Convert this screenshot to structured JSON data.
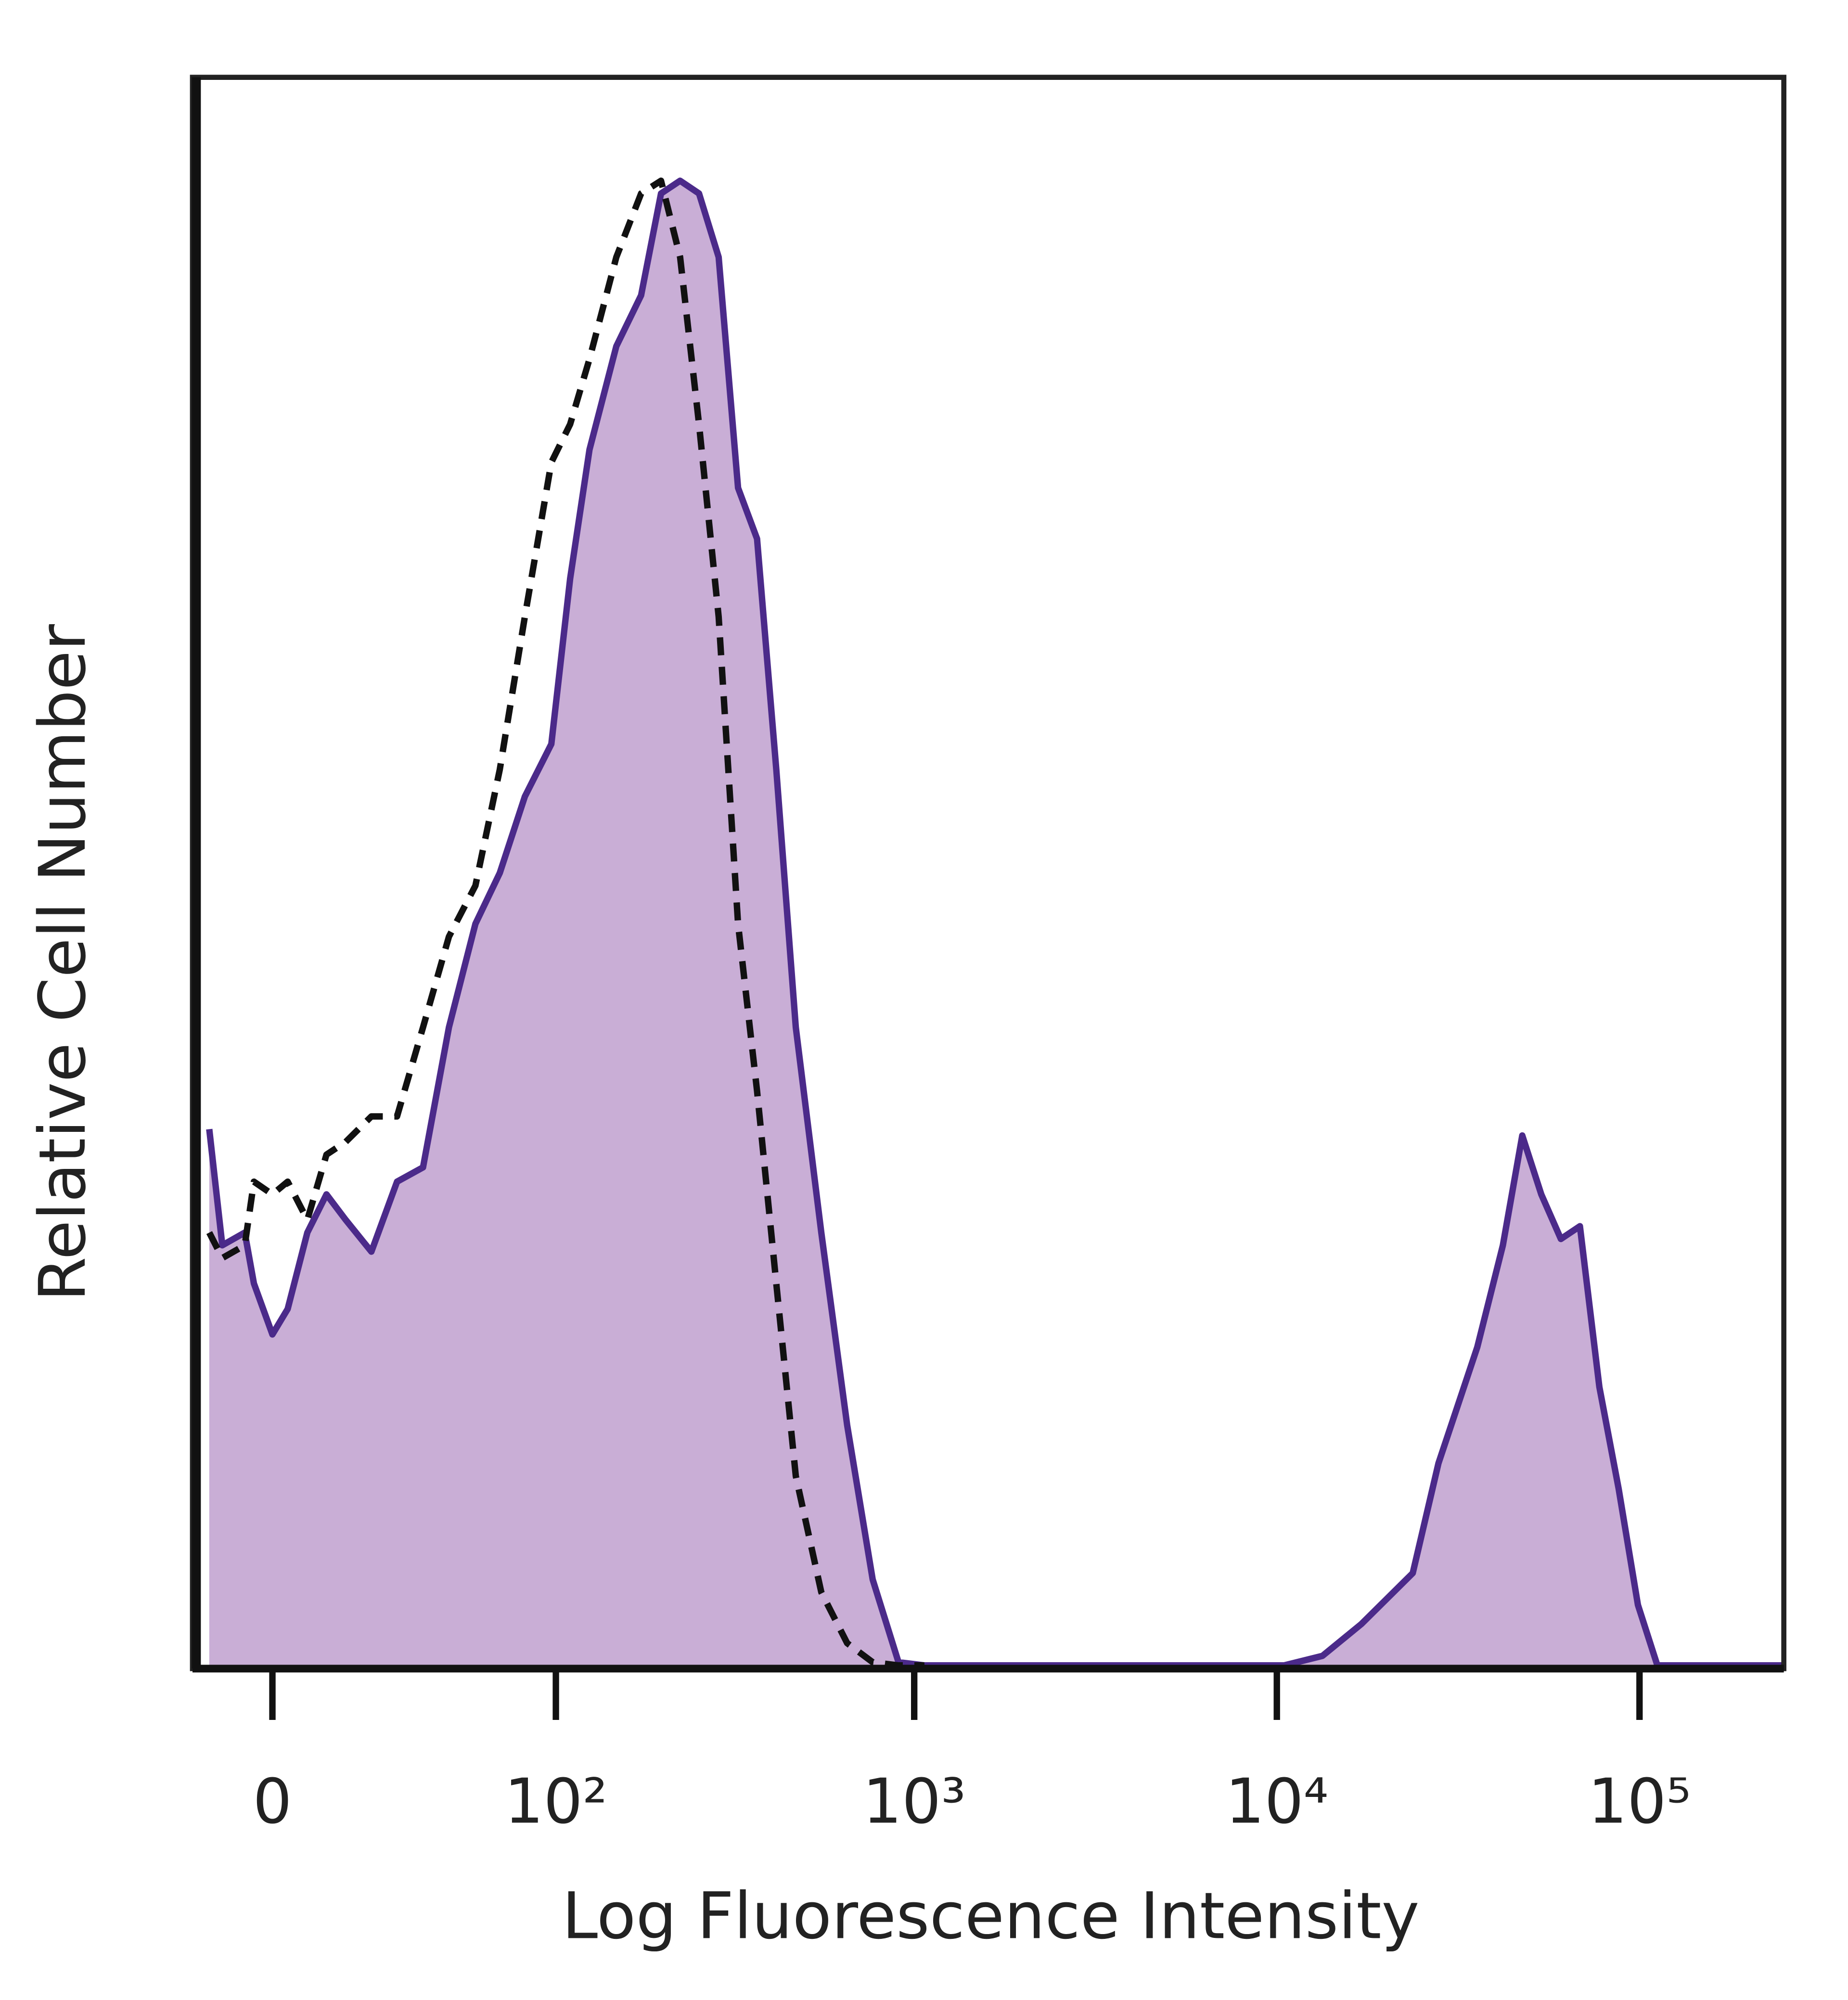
{
  "chart_data": {
    "type": "histogram-overlay",
    "x_label": "Log Fluorescence Intensity",
    "y_label": "Relative Cell Number",
    "xscale": "asinh",
    "xlim": [
      -18,
      250000
    ],
    "ylim": [
      0,
      100
    ],
    "xticks": [
      0,
      {
        "value": 100,
        "label": "10²"
      },
      {
        "value": 1000,
        "label": "10³"
      },
      {
        "value": 10000,
        "label": "10⁴"
      },
      {
        "value": 100000,
        "label": "10⁵"
      }
    ],
    "x": [
      -14,
      -11,
      -6,
      -4,
      0,
      3.3,
      7.6,
      11.9,
      16.4,
      22.8,
      29.8,
      37.7,
      46.6,
      57,
      68,
      81,
      97,
      110,
      125,
      149,
      175,
      199,
      225,
      254,
      288,
      326,
      368,
      416,
      471,
      554,
      653,
      768,
      905,
      1067,
      10470,
      13360,
      17100,
      23700,
      27900,
      35700,
      42000,
      47500,
      53600,
      60700,
      68500,
      77500,
      87600,
      99000,
      112000,
      250000
    ],
    "series": [
      {
        "color": "#4b2a8a",
        "fill": "#c9aed6",
        "dashed": false,
        "values": [
          33.9,
          26.6,
          27.4,
          24.2,
          21.0,
          22.6,
          27.4,
          29.8,
          28.2,
          26.2,
          30.6,
          31.5,
          40.3,
          46.8,
          50.0,
          54.8,
          58.1,
          68.5,
          76.6,
          83.1,
          86.3,
          92.7,
          93.5,
          92.7,
          88.7,
          74.2,
          71.0,
          56.5,
          40.3,
          27.4,
          15.3,
          5.6,
          0.4,
          0.2,
          0.2,
          0.8,
          2.8,
          6.0,
          12.9,
          20.2,
          26.6,
          33.5,
          29.8,
          27.0,
          27.8,
          17.7,
          11.3,
          4.0,
          0.2,
          0.2
        ]
      },
      {
        "color": "#111111",
        "fill": null,
        "dashed": true,
        "values": [
          27.4,
          25.8,
          26.6,
          30.6,
          29.8,
          30.6,
          28.2,
          32.3,
          33.1,
          34.7,
          34.7,
          40.3,
          46.0,
          49.2,
          56.5,
          66.1,
          75.8,
          78.2,
          82.3,
          88.7,
          92.7,
          93.5,
          88.7,
          78.2,
          66.1,
          46.8,
          36.3,
          24.2,
          12.1,
          4.8,
          1.6,
          0.4,
          0.2,
          0.2,
          null,
          null,
          null,
          null,
          null,
          null,
          null,
          null,
          null,
          null,
          null,
          null,
          null,
          null,
          null,
          null
        ]
      }
    ]
  }
}
